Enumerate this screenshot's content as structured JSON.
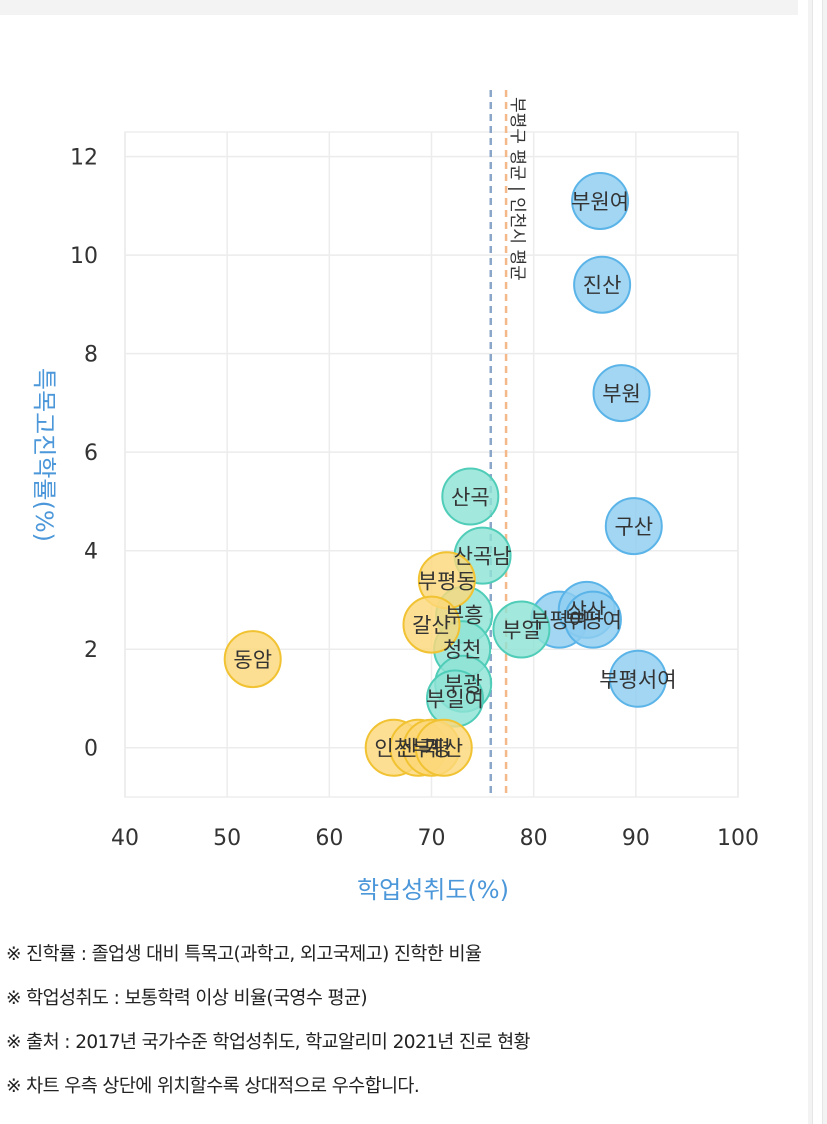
{
  "chart_data": {
    "type": "scatter",
    "xlabel": "학업성취도(%)",
    "ylabel": "특목고진학률(%)",
    "xlim": [
      40,
      100
    ],
    "ylim": [
      -1,
      12.5
    ],
    "xticks": [
      "40",
      "50",
      "60",
      "70",
      "80",
      "90",
      "100"
    ],
    "yticks": [
      "0",
      "2",
      "4",
      "6",
      "8",
      "10",
      "12"
    ],
    "grid": true,
    "reference_lines": [
      {
        "x": 75.8,
        "color": "#8aa6c8",
        "label": ""
      },
      {
        "x": 77.3,
        "color": "#f4b98a",
        "label": ""
      }
    ],
    "vertical_label": "부평구 평균 | 인천시 평균",
    "points": [
      {
        "label": "부원여",
        "x": 86.5,
        "y": 11.1,
        "group": "blue"
      },
      {
        "label": "진산",
        "x": 86.7,
        "y": 9.4,
        "group": "blue"
      },
      {
        "label": "부원",
        "x": 88.6,
        "y": 7.2,
        "group": "blue"
      },
      {
        "label": "구산",
        "x": 89.8,
        "y": 4.5,
        "group": "blue"
      },
      {
        "label": "부평여",
        "x": 82.5,
        "y": 2.6,
        "group": "blue"
      },
      {
        "label": "삼산",
        "x": 85.2,
        "y": 2.8,
        "group": "blue"
      },
      {
        "label": "부평여",
        "x": 85.8,
        "y": 2.6,
        "group": "blue"
      },
      {
        "label": "부평서여",
        "x": 90.2,
        "y": 1.4,
        "group": "blue"
      },
      {
        "label": "산곡",
        "x": 73.8,
        "y": 5.1,
        "group": "teal"
      },
      {
        "label": "산곡남",
        "x": 75.0,
        "y": 3.9,
        "group": "teal"
      },
      {
        "label": "부흥",
        "x": 73.2,
        "y": 2.7,
        "group": "teal"
      },
      {
        "label": "부일",
        "x": 78.8,
        "y": 2.4,
        "group": "teal"
      },
      {
        "label": "청천",
        "x": 73.0,
        "y": 2.0,
        "group": "teal"
      },
      {
        "label": "부광",
        "x": 73.1,
        "y": 1.3,
        "group": "teal"
      },
      {
        "label": "부일여",
        "x": 72.3,
        "y": 1.0,
        "group": "teal"
      },
      {
        "label": "부평동",
        "x": 71.5,
        "y": 3.4,
        "group": "yellow"
      },
      {
        "label": "갈산",
        "x": 70.0,
        "y": 2.5,
        "group": "yellow"
      },
      {
        "label": "동암",
        "x": 52.5,
        "y": 1.8,
        "group": "yellow"
      },
      {
        "label": "인천",
        "x": 66.3,
        "y": 0.0,
        "group": "yellow"
      },
      {
        "label": "산곡",
        "x": 68.7,
        "y": 0.0,
        "group": "yellow"
      },
      {
        "label": "부평",
        "x": 70.0,
        "y": 0.0,
        "group": "yellow"
      },
      {
        "label": "계산",
        "x": 71.2,
        "y": 0.0,
        "group": "yellow"
      }
    ],
    "group_colors": {
      "blue": {
        "fill": "#8fcdf0",
        "stroke": "#5bb4e8"
      },
      "teal": {
        "fill": "#8fe3d5",
        "stroke": "#50cdb8"
      },
      "yellow": {
        "fill": "#fbd87a",
        "stroke": "#f1c232"
      }
    }
  },
  "notes": [
    "※ 진학률 : 졸업생 대비 특목고(과학고, 외고국제고) 진학한 비율",
    "※ 학업성취도 : 보통학력 이상 비율(국영수 평균)",
    "※ 출처 : 2017년 국가수준 학업성취도, 학교알리미 2021년 진로 현황",
    "※ 차트 우측 상단에 위치할수록 상대적으로 우수합니다."
  ]
}
